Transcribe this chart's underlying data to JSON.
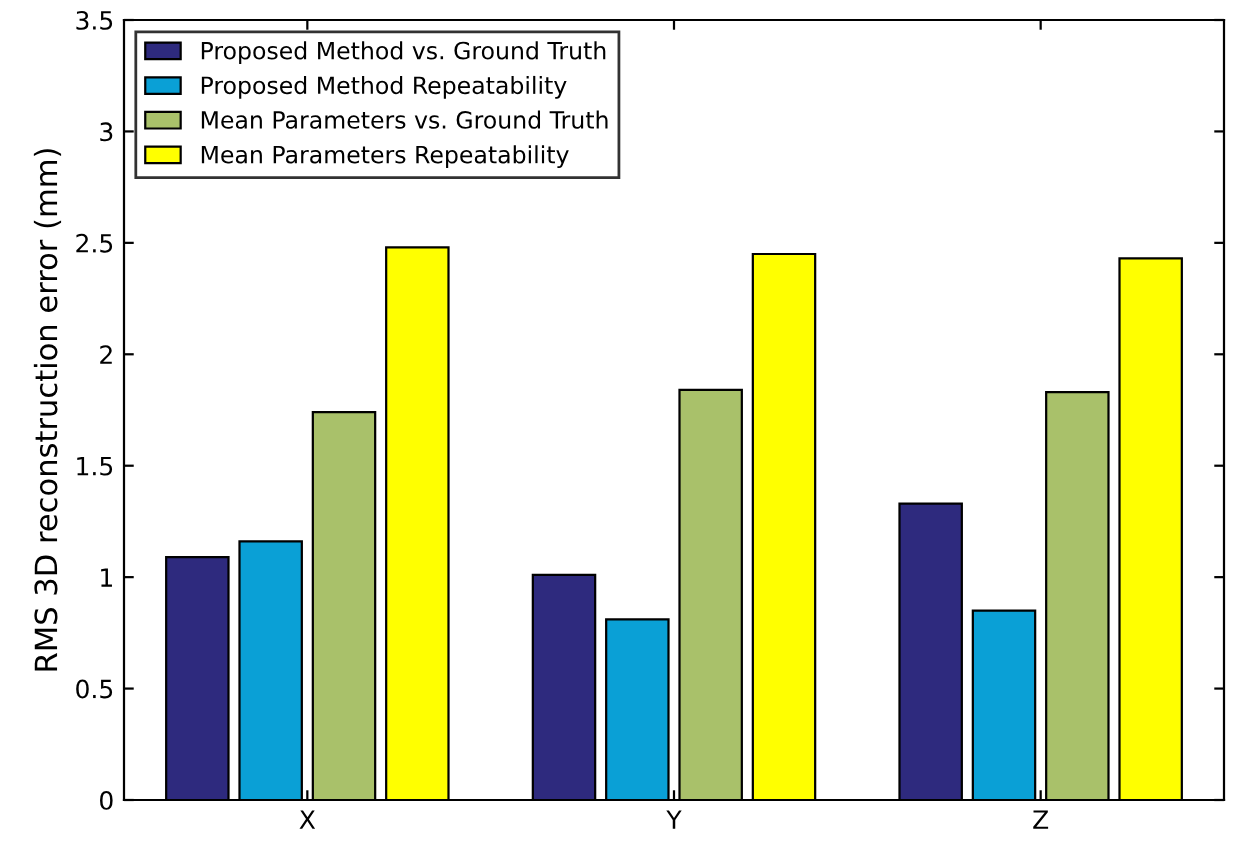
{
  "chart_data": {
    "type": "bar",
    "ylabel": "RMS 3D reconstruction error (mm)",
    "categories": [
      "X",
      "Y",
      "Z"
    ],
    "series": [
      {
        "name": "Proposed Method vs. Ground Truth",
        "color": "#2e2a7e",
        "values": [
          1.09,
          1.01,
          1.33
        ]
      },
      {
        "name": "Proposed Method Repeatability",
        "color": "#0aa0d6",
        "values": [
          1.16,
          0.81,
          0.85
        ]
      },
      {
        "name": "Mean Parameters vs. Ground Truth",
        "color": "#a9c16a",
        "values": [
          1.74,
          1.84,
          1.83
        ]
      },
      {
        "name": "Mean Parameters Repeatability",
        "color": "#ffff00",
        "values": [
          2.48,
          2.45,
          2.43
        ]
      }
    ],
    "ylim": [
      0,
      3.5
    ],
    "yticks": [
      0,
      0.5,
      1,
      1.5,
      2,
      2.5,
      3,
      3.5
    ],
    "grid": false,
    "legend": "top left"
  }
}
